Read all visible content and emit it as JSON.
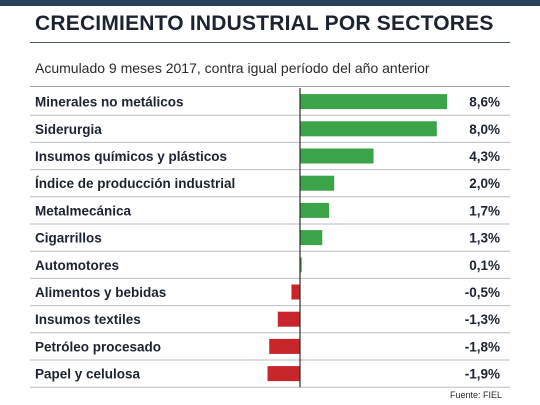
{
  "header": {
    "title": "CRECIMIENTO INDUSTRIAL POR SECTORES",
    "subtitle": "Acumulado 9 meses 2017, contra igual período del año anterior"
  },
  "footer": {
    "source": "Fuente: FIEL"
  },
  "colors": {
    "positive": "#3aa447",
    "negative": "#c8262b",
    "row_rule": "#b9bdc3",
    "axis": "#2b2b2b",
    "text": "#1c2330"
  },
  "chart_data": {
    "type": "bar",
    "orientation": "horizontal",
    "categories": [
      "Minerales no metálicos",
      "Siderurgia",
      "Insumos químicos y plásticos",
      "Índice de producción industrial",
      "Metalmecánica",
      "Cigarrillos",
      "Automotores",
      "Alimentos y bebidas",
      "Insumos textiles",
      "Petróleo procesado",
      "Papel y celulosa"
    ],
    "values": [
      8.6,
      8.0,
      4.3,
      2.0,
      1.7,
      1.3,
      0.1,
      -0.5,
      -1.3,
      -1.8,
      -1.9
    ],
    "value_labels": [
      "8,6%",
      "8,0%",
      "4,3%",
      "2,0%",
      "1,7%",
      "1,3%",
      "0,1%",
      "-0,5%",
      "-1,3%",
      "-1,8%",
      "-1,9%"
    ],
    "xlim": [
      -2.0,
      8.6
    ],
    "grid": false,
    "legend": "none"
  }
}
